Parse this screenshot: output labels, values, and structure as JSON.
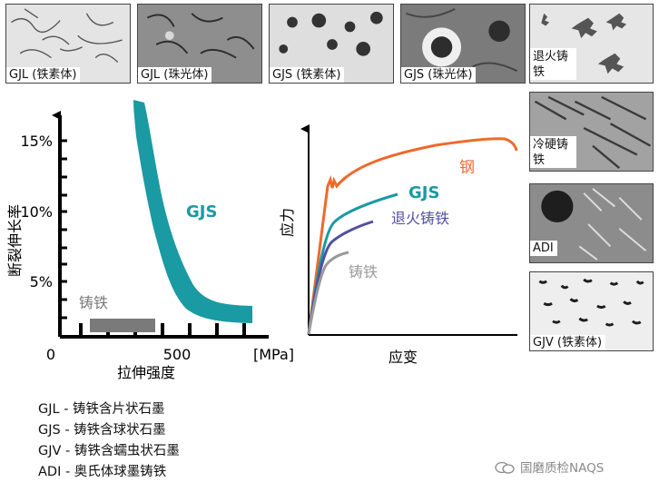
{
  "thumbnails": [
    {
      "label": "GJL (铁素体)"
    },
    {
      "label": "GJL (珠光体)"
    },
    {
      "label": "GJS (铁素体)"
    },
    {
      "label": "GJS (珠光体)"
    },
    {
      "label": "退火铸铁"
    },
    {
      "label": "冷硬铸铁"
    },
    {
      "label": "ADI"
    },
    {
      "label": "GJV (铁素体)"
    }
  ],
  "left_chart": {
    "ylabel": "断裂伸长率",
    "xlabel": "拉伸强度",
    "x_unit": "[MPa]",
    "y_ticks": [
      "15%",
      "10%",
      "5%"
    ],
    "x_ticks": [
      "0",
      "500"
    ],
    "labels": {
      "gjs": "GJS",
      "cast_iron": "铸铁"
    },
    "colors": {
      "gjs": "#1a9aa3",
      "cast_iron": "#7a7a7a"
    }
  },
  "right_chart": {
    "ylabel": "应力",
    "xlabel": "应变",
    "labels": {
      "steel": "钢",
      "gjs": "GJS",
      "annealed": "退火铸铁",
      "cast_iron": "铸铁"
    },
    "colors": {
      "steel": "#ee6a2c",
      "gjs": "#1a9aa3",
      "annealed": "#5150a0",
      "cast_iron": "#9a9a9a"
    }
  },
  "legend": [
    "GJL  -  铸铁含片状石墨",
    "GJS -  铸铁含球状石墨",
    "GJV -  铸铁含蠕虫状石墨",
    "ADI  -  奥氏体球墨铸铁"
  ],
  "watermark": "国磨质检NAQS"
}
